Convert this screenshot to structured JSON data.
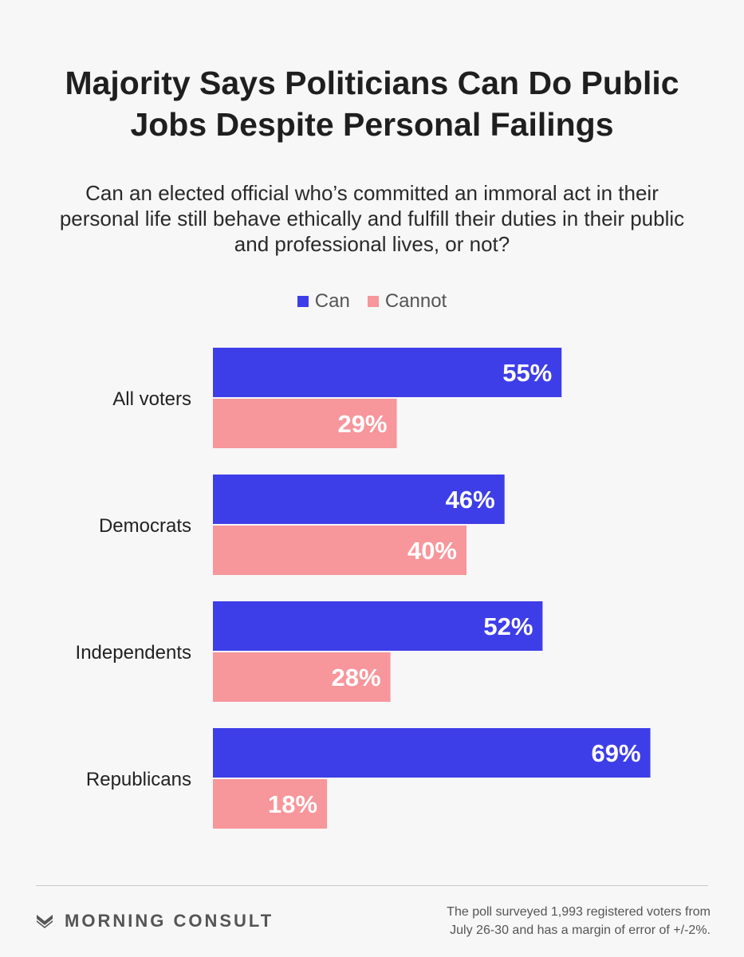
{
  "title": "Majority Says Politicians Can Do Public Jobs Despite Personal Failings",
  "subtitle": "Can an elected official who’s committed an immoral act in their personal life still behave ethically and fulfill their duties in their public and professional lives, or not?",
  "legend": [
    {
      "label": "Can",
      "color": "#3e3ee8"
    },
    {
      "label": "Cannot",
      "color": "#f7969b"
    }
  ],
  "chart_data": {
    "type": "bar",
    "orientation": "horizontal",
    "categories": [
      "All voters",
      "Democrats",
      "Independents",
      "Republicans"
    ],
    "series": [
      {
        "name": "Can",
        "values": [
          55,
          46,
          52,
          69
        ],
        "color": "#3e3ee8"
      },
      {
        "name": "Cannot",
        "values": [
          29,
          40,
          28,
          18
        ],
        "color": "#f7969b"
      }
    ],
    "value_suffix": "%",
    "title": "Majority Says Politicians Can Do Public Jobs Despite Personal Failings",
    "xlabel": "",
    "ylabel": "",
    "xlim": [
      0,
      100
    ],
    "grid": false,
    "legend_position": "top"
  },
  "footer": {
    "brand": "MORNING CONSULT",
    "logo_icon": "morning-consult-chevron-icon",
    "note_line1": "The poll surveyed 1,993 registered voters from",
    "note_line2": "July 26-30 and has a margin of error of +/-2%."
  }
}
